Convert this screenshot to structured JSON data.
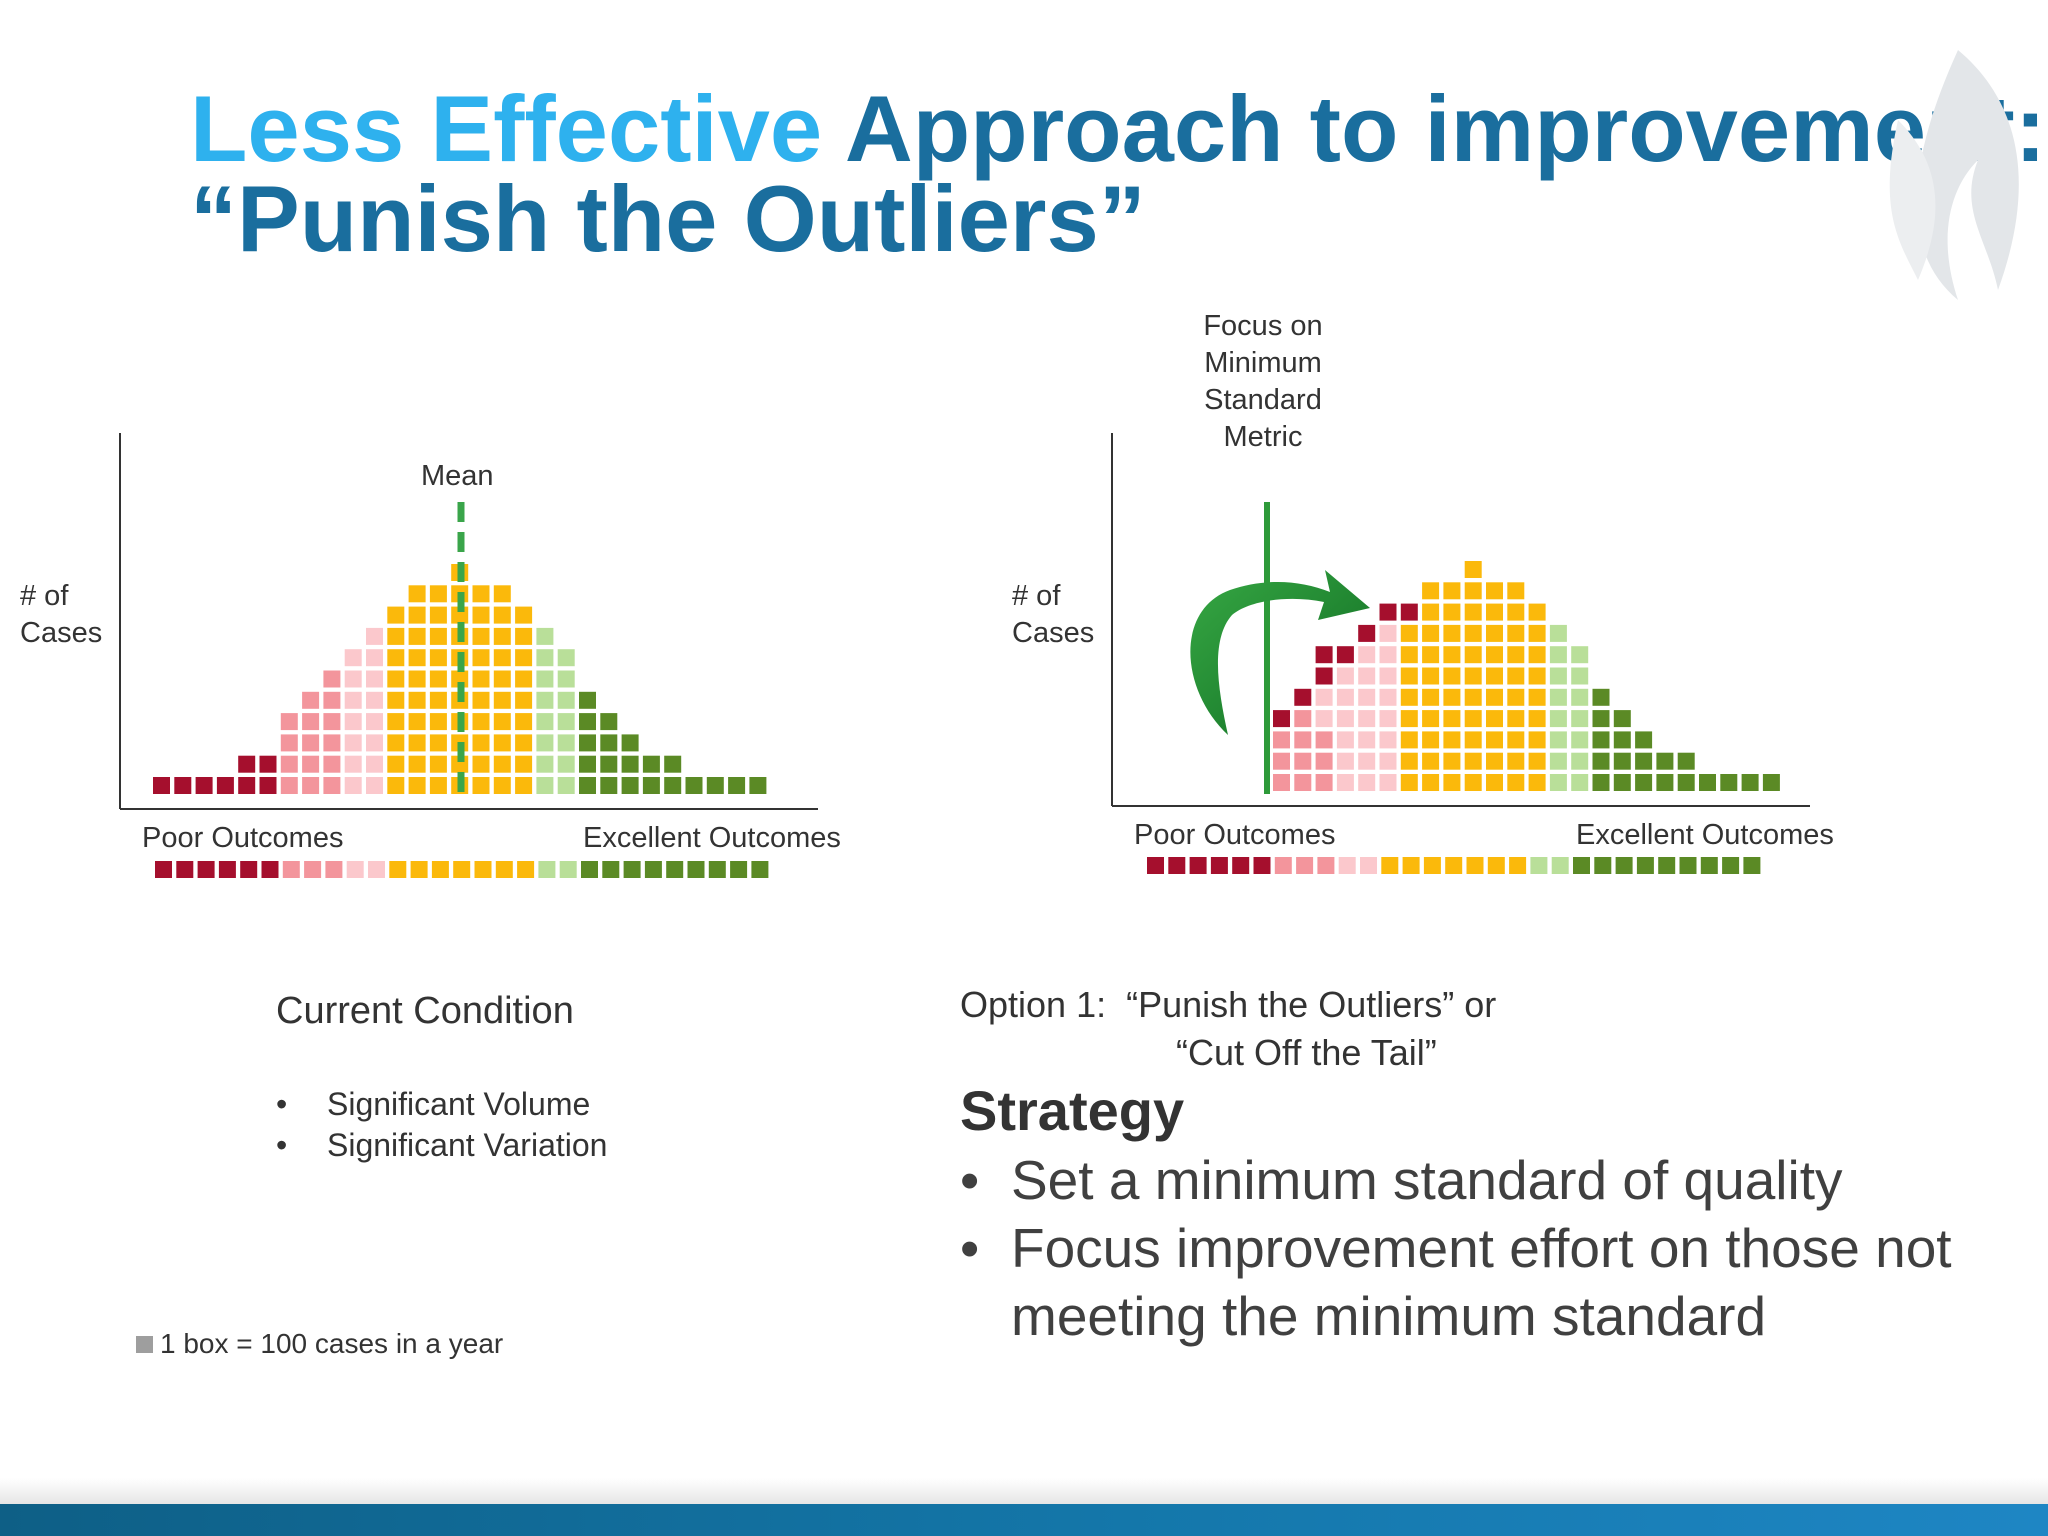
{
  "title": {
    "accent": "Less Effective",
    "rest": " Approach to improvement:",
    "line2": "“Punish the Outliers”"
  },
  "colors": {
    "dark_red": "#a50f2d",
    "pink": "#f3959c",
    "light_pink": "#fbc8cc",
    "yellow": "#fbb90b",
    "light_green": "#b9df99",
    "dark_green": "#5b8a25",
    "title_blue": "#1a6e9e",
    "title_accent": "#2eb1ee",
    "mean_line": "#3aa54a",
    "standard_line": "#2e9a3a",
    "arrow": "#1f8a2e"
  },
  "chart_data": [
    {
      "type": "unit-histogram",
      "name": "Current Condition",
      "ylabel": "# of\nCases",
      "xlabel_left": "Poor Outcomes",
      "xlabel_right": "Excellent Outcomes",
      "mean_label": "Mean",
      "unit": "1 box = 100 cases in a year",
      "columns": [
        {
          "color": "dark_red",
          "count": 1
        },
        {
          "color": "dark_red",
          "count": 1
        },
        {
          "color": "dark_red",
          "count": 1
        },
        {
          "color": "dark_red",
          "count": 1
        },
        {
          "color": "dark_red",
          "count": 2
        },
        {
          "color": "dark_red",
          "count": 2
        },
        {
          "color": "pink",
          "count": 4
        },
        {
          "color": "pink",
          "count": 5
        },
        {
          "color": "pink",
          "count": 6
        },
        {
          "color": "light_pink",
          "count": 7
        },
        {
          "color": "light_pink",
          "count": 8
        },
        {
          "color": "yellow",
          "count": 9
        },
        {
          "color": "yellow",
          "count": 10
        },
        {
          "color": "yellow",
          "count": 10
        },
        {
          "color": "yellow",
          "count": 11
        },
        {
          "color": "yellow",
          "count": 10
        },
        {
          "color": "yellow",
          "count": 10
        },
        {
          "color": "yellow",
          "count": 9
        },
        {
          "color": "light_green",
          "count": 8
        },
        {
          "color": "light_green",
          "count": 7
        },
        {
          "color": "dark_green",
          "count": 5
        },
        {
          "color": "dark_green",
          "count": 4
        },
        {
          "color": "dark_green",
          "count": 3
        },
        {
          "color": "dark_green",
          "count": 2
        },
        {
          "color": "dark_green",
          "count": 2
        },
        {
          "color": "dark_green",
          "count": 1
        },
        {
          "color": "dark_green",
          "count": 1
        },
        {
          "color": "dark_green",
          "count": 1
        },
        {
          "color": "dark_green",
          "count": 1
        }
      ]
    },
    {
      "type": "unit-histogram",
      "name": "Option 1",
      "ylabel": "# of\nCases",
      "xlabel_left": "Poor Outcomes",
      "xlabel_right": "Excellent Outcomes",
      "annotation": "Focus on\nMinimum\nStandard\nMetric",
      "columns": [
        {
          "color": "dark_red",
          "count": 4,
          "pink_below": 3
        },
        {
          "color": "dark_red",
          "count": 5,
          "pink_below": 4
        },
        {
          "color": "dark_red",
          "count": 7,
          "pink_below": 5
        },
        {
          "color": "dark_red",
          "count": 7,
          "pink_below": 6
        },
        {
          "color": "dark_red",
          "count": 8,
          "pink_below": 7
        },
        {
          "color": "dark_red",
          "count": 9,
          "pink_below": 8
        },
        {
          "color": "yellow",
          "count": 9,
          "red_top": 1
        },
        {
          "color": "yellow",
          "count": 10
        },
        {
          "color": "yellow",
          "count": 10
        },
        {
          "color": "yellow",
          "count": 11
        },
        {
          "color": "yellow",
          "count": 10
        },
        {
          "color": "yellow",
          "count": 10
        },
        {
          "color": "yellow",
          "count": 9
        },
        {
          "color": "light_green",
          "count": 8
        },
        {
          "color": "light_green",
          "count": 7
        },
        {
          "color": "dark_green",
          "count": 5
        },
        {
          "color": "dark_green",
          "count": 4
        },
        {
          "color": "dark_green",
          "count": 3
        },
        {
          "color": "dark_green",
          "count": 2
        },
        {
          "color": "dark_green",
          "count": 2
        },
        {
          "color": "dark_green",
          "count": 1
        },
        {
          "color": "dark_green",
          "count": 1
        },
        {
          "color": "dark_green",
          "count": 1
        },
        {
          "color": "dark_green",
          "count": 1
        }
      ]
    }
  ],
  "strip_left": [
    "dark_red",
    "dark_red",
    "dark_red",
    "dark_red",
    "dark_red",
    "dark_red",
    "pink",
    "pink",
    "pink",
    "light_pink",
    "light_pink",
    "yellow",
    "yellow",
    "yellow",
    "yellow",
    "yellow",
    "yellow",
    "yellow",
    "light_green",
    "light_green",
    "dark_green",
    "dark_green",
    "dark_green",
    "dark_green",
    "dark_green",
    "dark_green",
    "dark_green",
    "dark_green",
    "dark_green"
  ],
  "strip_right": [
    "dark_red",
    "dark_red",
    "dark_red",
    "dark_red",
    "dark_red",
    "dark_red",
    "pink",
    "pink",
    "pink",
    "light_pink",
    "light_pink",
    "yellow",
    "yellow",
    "yellow",
    "yellow",
    "yellow",
    "yellow",
    "yellow",
    "light_green",
    "light_green",
    "dark_green",
    "dark_green",
    "dark_green",
    "dark_green",
    "dark_green",
    "dark_green",
    "dark_green",
    "dark_green",
    "dark_green"
  ],
  "labels": {
    "ylabel_left": "# of\nCases",
    "ylabel_right": "# of\nCases",
    "mean": "Mean",
    "focus": "Focus on\nMinimum\nStandard\nMetric",
    "poor_left": "Poor Outcomes",
    "excellent_left": "Excellent Outcomes",
    "poor_right": "Poor Outcomes",
    "excellent_right": "Excellent Outcomes"
  },
  "current": {
    "heading": "Current Condition",
    "bullets": [
      "Significant Volume",
      "Significant Variation"
    ]
  },
  "option": {
    "line1": "Option 1:  “Punish the Outliers” or",
    "line2": "“Cut Off the Tail”"
  },
  "strategy": {
    "heading": "Strategy",
    "bullets": [
      "Set a minimum standard of quality",
      "Focus improvement effort on those not meeting the minimum standard"
    ]
  },
  "legend": {
    "text": "1 box = 100 cases in a year"
  }
}
